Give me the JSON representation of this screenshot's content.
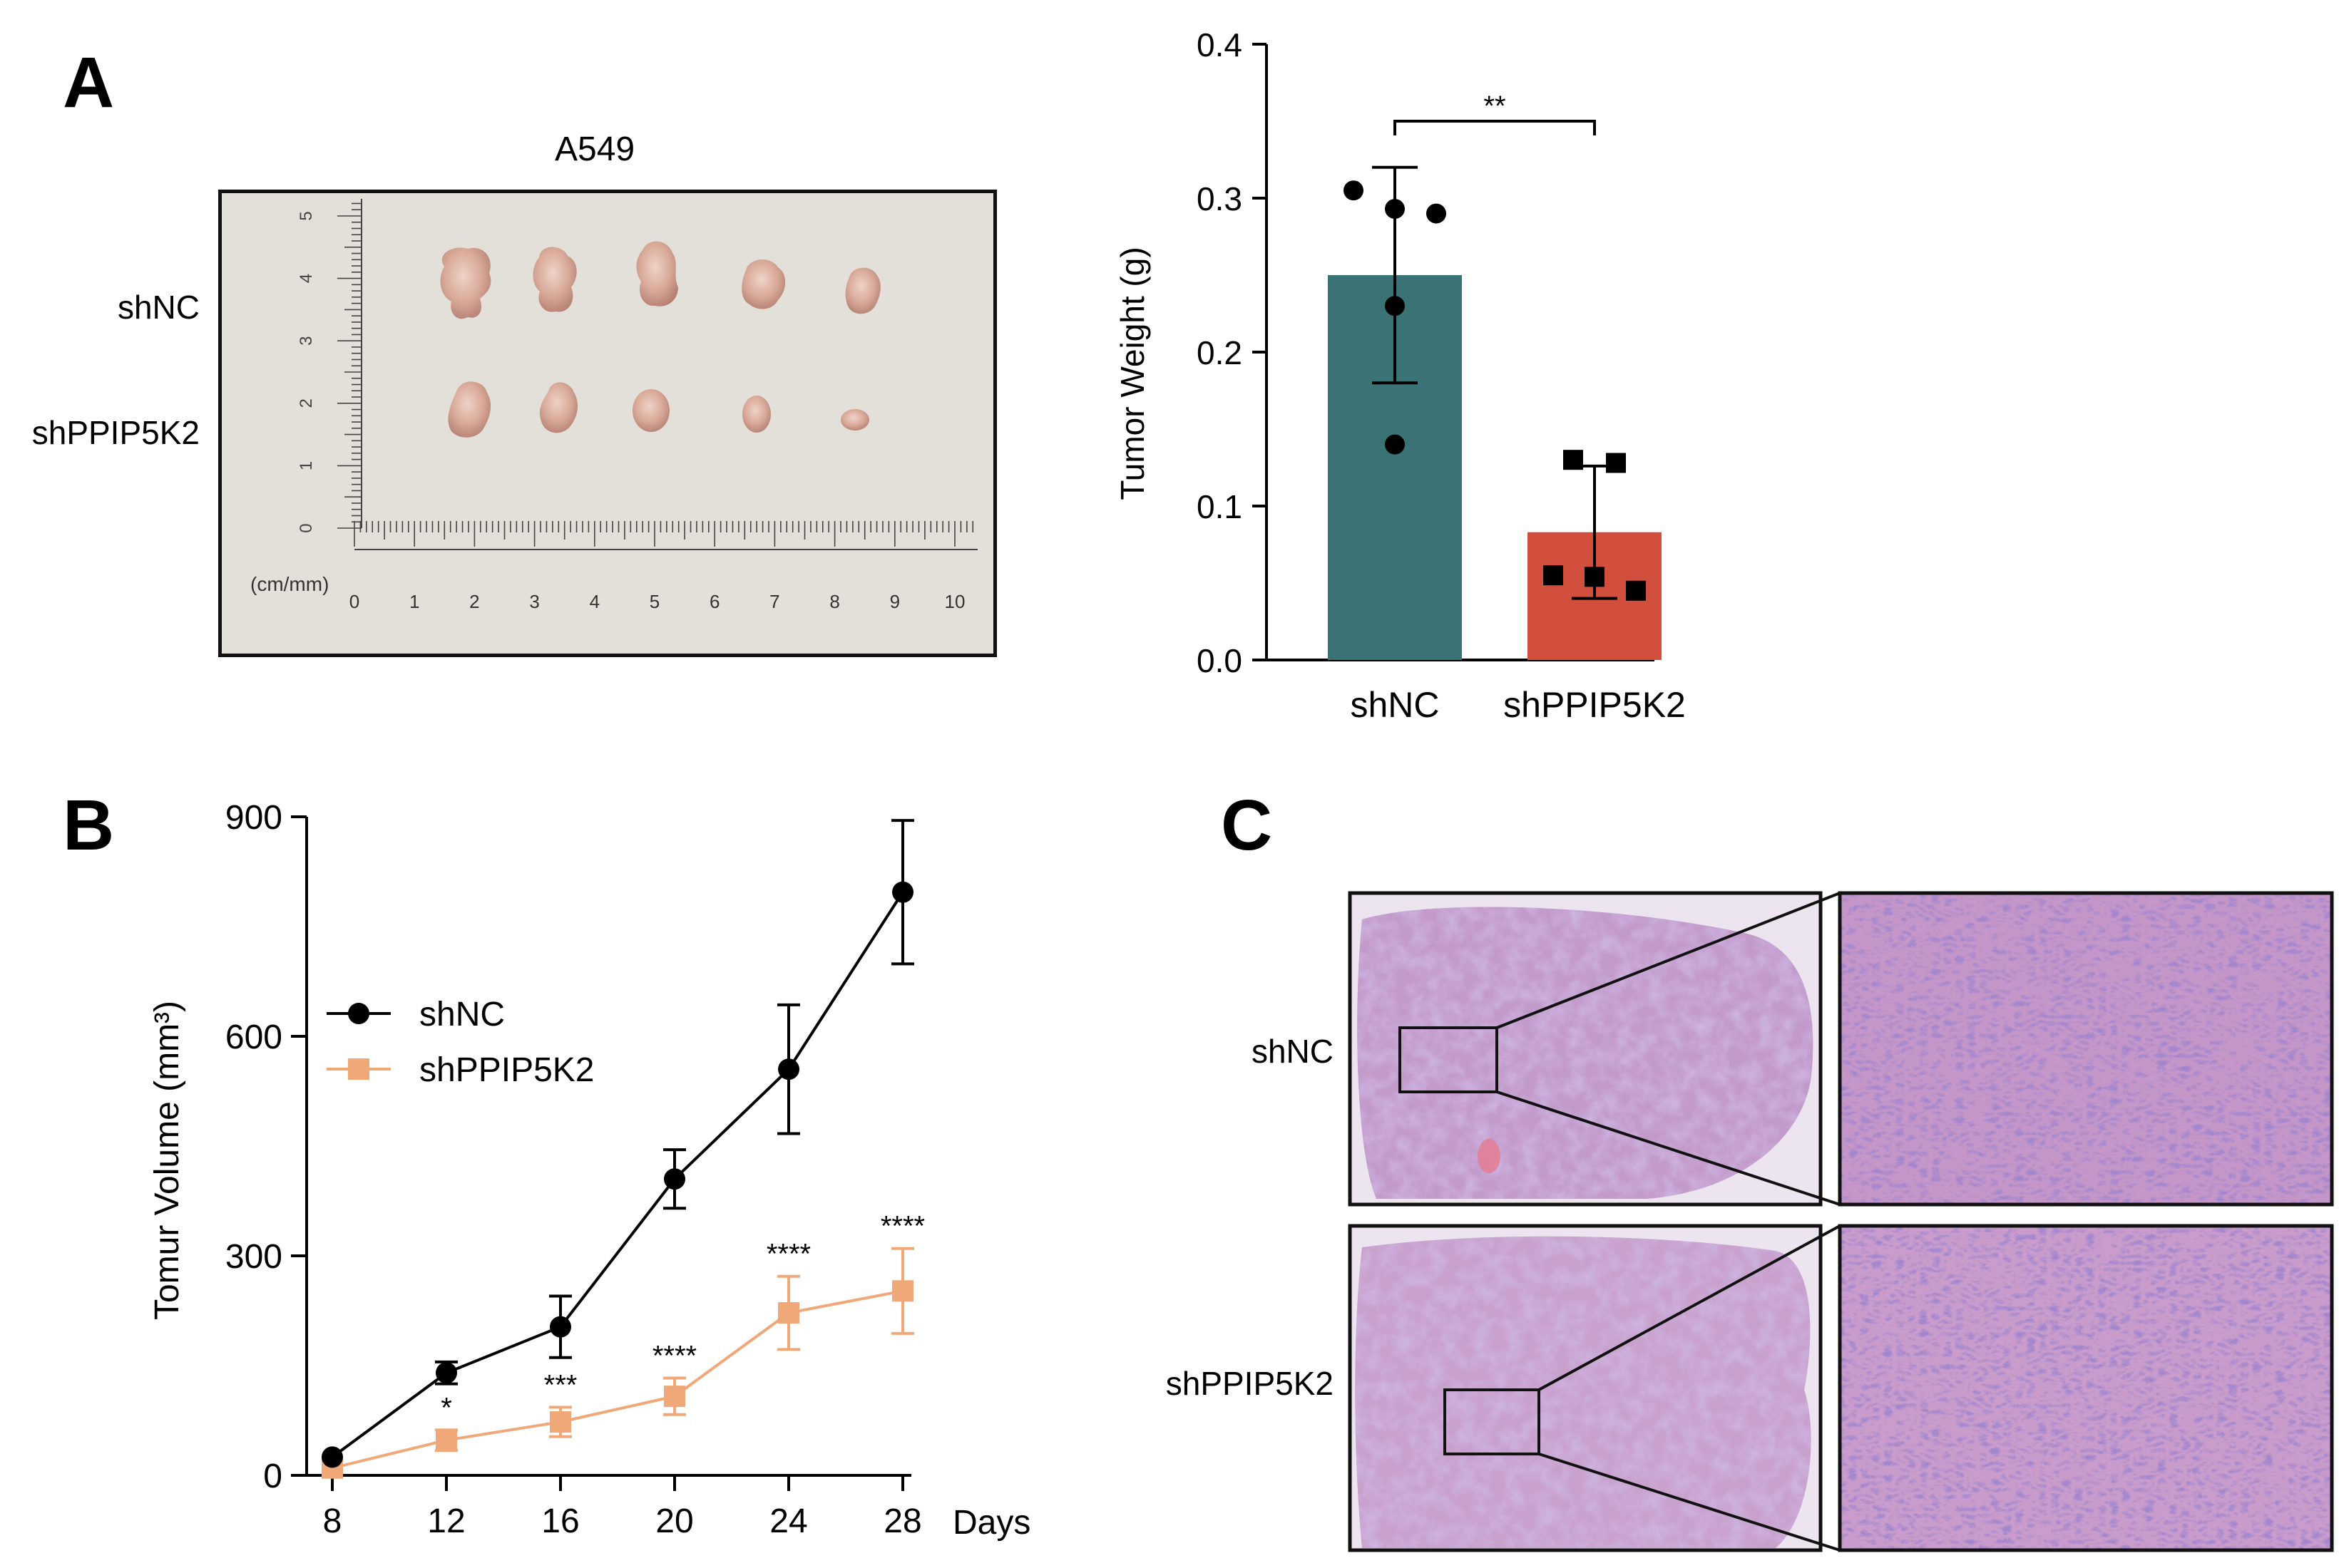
{
  "panels": {
    "a": "A",
    "b": "B",
    "c": "C"
  },
  "panel_a": {
    "photo_title": "A549",
    "row_labels": [
      "shNC",
      "shPPIP5K2"
    ],
    "ruler_unit": "(cm/mm)",
    "ruler_x_labels": [
      "0",
      "1",
      "2",
      "3",
      "4",
      "5",
      "6",
      "7",
      "8",
      "9",
      "10"
    ],
    "ruler_y_labels": [
      "0",
      "1",
      "2",
      "3",
      "4",
      "5"
    ]
  },
  "panel_c": {
    "row_labels": [
      "shNC",
      "shPPIP5K2"
    ]
  },
  "colors": {
    "shNC_bar": "#3b7275",
    "shPPIP5K2_bar": "#d14f3c",
    "shNC_line": "#000000",
    "shPPIP5K2_line": "#f0a878",
    "he_pink": "#c89ac6",
    "he_purple": "#8a69b6"
  },
  "chart_data": [
    {
      "id": "tumor-weight",
      "type": "bar",
      "categories": [
        "shNC",
        "shPPIP5K2"
      ],
      "values": [
        0.25,
        0.083
      ],
      "errors": [
        0.07,
        0.043
      ],
      "points": [
        [
          0.305,
          0.293,
          0.29,
          0.23,
          0.14
        ],
        [
          0.13,
          0.128,
          0.055,
          0.054,
          0.045
        ]
      ],
      "ylabel": "Tumor Weight (g)",
      "ylim": [
        0,
        0.4
      ],
      "yticks": [
        "0.0",
        "0.1",
        "0.2",
        "0.3",
        "0.4"
      ],
      "significance": "**"
    },
    {
      "id": "tumor-volume",
      "type": "line",
      "x": [
        8,
        12,
        16,
        20,
        24,
        28
      ],
      "xticks": [
        "8",
        "12",
        "16",
        "20",
        "24",
        "28"
      ],
      "xlabel": "Days",
      "ylabel": "Tomur Volume (mm³)",
      "ylim": [
        0,
        900
      ],
      "yticks": [
        "0",
        "300",
        "600",
        "900"
      ],
      "series": [
        {
          "name": "shNC",
          "values": [
            25,
            140,
            203,
            405,
            555,
            797
          ],
          "errors": [
            0,
            15,
            42,
            40,
            88,
            98
          ],
          "marker": "circle"
        },
        {
          "name": "shPPIP5K2",
          "values": [
            10,
            48,
            73,
            108,
            222,
            252
          ],
          "errors": [
            0,
            14,
            20,
            25,
            50,
            58
          ],
          "marker": "square"
        }
      ],
      "annotations": [
        "",
        "*",
        "***",
        "****",
        "****",
        "****"
      ]
    }
  ]
}
